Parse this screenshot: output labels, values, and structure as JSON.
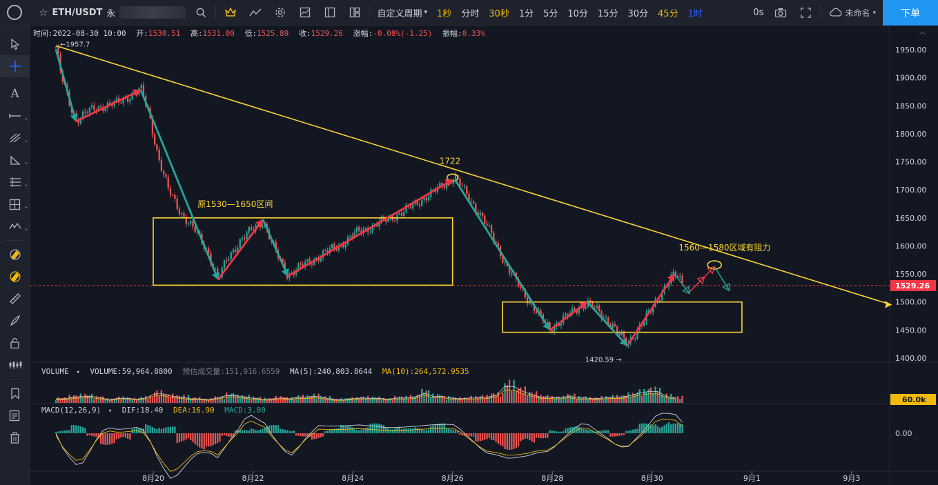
{
  "toolbar": {
    "symbol": "ETH/USDT",
    "symbol_suffix": "永",
    "interval_menu": "自定义周期",
    "periods": [
      "1秒",
      "分时",
      "30秒",
      "1分",
      "5分",
      "10分",
      "15分",
      "30分",
      "45分",
      "1时"
    ],
    "period_states": [
      "gold",
      "normal",
      "gold",
      "normal",
      "normal",
      "normal",
      "normal",
      "normal",
      "gold",
      "blue"
    ],
    "countdown": "0s",
    "save_label": "未命名",
    "order_button": "下单"
  },
  "legend": {
    "time_label": "时间:",
    "time": "2022-08-30 10:00",
    "open_label": "开:",
    "open": "1530.51",
    "high_label": "高:",
    "high": "1531.00",
    "low_label": "低:",
    "low": "1525.89",
    "close_label": "收:",
    "close": "1529.26",
    "change_label": "涨幅:",
    "change": "-0.08%(-1.25)",
    "amp_label": "振幅:",
    "amp": "0.33%"
  },
  "volume_legend": {
    "title": "VOLUME",
    "volume": "VOLUME:59,964.8800",
    "estimate": "预估成交量:151,916.6559",
    "ma5": "MA(5):240,803.8644",
    "ma10": "MA(10):264,572.9535"
  },
  "macd_legend": {
    "title": "MACD(12,26,9)",
    "dif": "DIF:18.40",
    "dea": "DEA:16.90",
    "macd": "MACD:3.00"
  },
  "chart_data": {
    "type": "candlestick",
    "price_axis": [
      "1950.00",
      "1900.00",
      "1850.00",
      "1800.00",
      "1750.00",
      "1700.00",
      "1650.00",
      "1600.00",
      "1550.00",
      "1500.00",
      "1450.00",
      "1400.00"
    ],
    "price_ticks": [
      1950,
      1900,
      1850,
      1800,
      1750,
      1700,
      1650,
      1600,
      1550,
      1500,
      1450,
      1400
    ],
    "ylim": [
      1390,
      1960
    ],
    "x_labels": [
      "8月20",
      "8月22",
      "8月24",
      "8月26",
      "8月28",
      "8月30",
      "9月1",
      "9月3"
    ],
    "x_days": [
      20,
      22,
      24,
      26,
      28,
      30,
      32,
      34
    ],
    "xlim": [
      18.0,
      35.0
    ],
    "last_price": "1529.26",
    "last_price_value": 1529.26,
    "volume_axis_label": "60.0k",
    "macd_axis_label": "0.00",
    "high_marker": "1957.7",
    "high_marker_value": 1957.7,
    "low_marker": "1420.59",
    "low_marker_value": 1420.59,
    "price_path": [
      [
        18.05,
        1955
      ],
      [
        18.15,
        1905
      ],
      [
        18.3,
        1860
      ],
      [
        18.45,
        1825
      ],
      [
        18.7,
        1840
      ],
      [
        19.0,
        1850
      ],
      [
        19.3,
        1855
      ],
      [
        19.6,
        1872
      ],
      [
        19.75,
        1880
      ],
      [
        19.9,
        1840
      ],
      [
        20.1,
        1760
      ],
      [
        20.3,
        1700
      ],
      [
        20.55,
        1660
      ],
      [
        20.85,
        1625
      ],
      [
        21.1,
        1590
      ],
      [
        21.3,
        1540
      ],
      [
        21.5,
        1580
      ],
      [
        21.75,
        1610
      ],
      [
        22.0,
        1630
      ],
      [
        22.2,
        1645
      ],
      [
        22.45,
        1590
      ],
      [
        22.7,
        1548
      ],
      [
        22.9,
        1560
      ],
      [
        23.2,
        1575
      ],
      [
        23.5,
        1590
      ],
      [
        23.8,
        1605
      ],
      [
        24.1,
        1625
      ],
      [
        24.4,
        1635
      ],
      [
        24.7,
        1648
      ],
      [
        25.0,
        1660
      ],
      [
        25.3,
        1678
      ],
      [
        25.6,
        1695
      ],
      [
        25.9,
        1715
      ],
      [
        26.05,
        1722
      ],
      [
        26.3,
        1690
      ],
      [
        26.6,
        1650
      ],
      [
        26.9,
        1600
      ],
      [
        27.1,
        1560
      ],
      [
        27.4,
        1520
      ],
      [
        27.7,
        1480
      ],
      [
        27.95,
        1452
      ],
      [
        28.2,
        1468
      ],
      [
        28.45,
        1485
      ],
      [
        28.7,
        1500
      ],
      [
        28.95,
        1480
      ],
      [
        29.2,
        1460
      ],
      [
        29.35,
        1440
      ],
      [
        29.5,
        1424
      ],
      [
        29.7,
        1450
      ],
      [
        29.95,
        1480
      ],
      [
        30.2,
        1520
      ],
      [
        30.45,
        1550
      ],
      [
        30.65,
        1530
      ]
    ],
    "volume_heights": [
      0.25,
      0.35,
      0.4,
      0.3,
      0.2,
      0.28,
      0.22,
      0.3,
      0.55,
      0.4,
      0.35,
      0.25,
      0.2,
      0.3,
      0.45,
      0.35,
      0.28,
      0.22,
      0.3,
      0.25,
      0.35,
      0.4,
      0.3,
      0.2,
      0.25,
      0.3,
      0.28,
      0.22,
      0.3,
      0.35,
      0.6,
      0.4,
      0.3,
      0.25,
      0.3,
      0.35,
      0.45,
      1.0,
      0.7,
      0.5,
      0.35,
      0.3,
      0.4,
      0.3,
      0.25,
      0.3,
      0.35,
      0.45,
      0.6,
      0.7,
      0.4,
      0.3
    ],
    "macd_hist": [
      0.2,
      0.5,
      -0.3,
      -0.7,
      -0.5,
      0.3,
      0.6,
      0.4,
      -0.6,
      -1.0,
      -0.8,
      -0.3,
      0.2,
      0.4,
      0.5,
      0.3,
      -0.2,
      -0.4,
      0.3,
      0.5,
      0.4,
      0.6,
      0.5,
      0.3,
      0.4,
      0.6,
      0.3,
      -0.2,
      -0.5,
      -0.9,
      -1.0,
      -0.7,
      -0.3,
      0.2,
      0.4,
      0.3,
      0.2,
      -0.2,
      0.3,
      0.6,
      0.8,
      0.6
    ],
    "annotations": {
      "range_label": "原1530—1650区间",
      "range_low": 1530,
      "range_high": 1650,
      "peak_label": "1722",
      "peak_value": 1722,
      "resistance_label": "1560—1580区域有阻力",
      "trendline": [
        [
          18.05,
          1957
        ],
        [
          34.8,
          1495
        ]
      ],
      "box_upper_range": [
        20.0,
        26.0
      ],
      "box_lower": [
        [
          27.0,
          1500
        ],
        [
          31.8,
          1446
        ]
      ]
    }
  },
  "colors": {
    "up": "#26a69a",
    "down": "#ef5350",
    "annot_yellow": "#fcd535",
    "arrow_red": "#f23645",
    "arrow_green": "#26a69a",
    "price_tag": "#f23645",
    "vol_tag": "#f0b90b"
  }
}
